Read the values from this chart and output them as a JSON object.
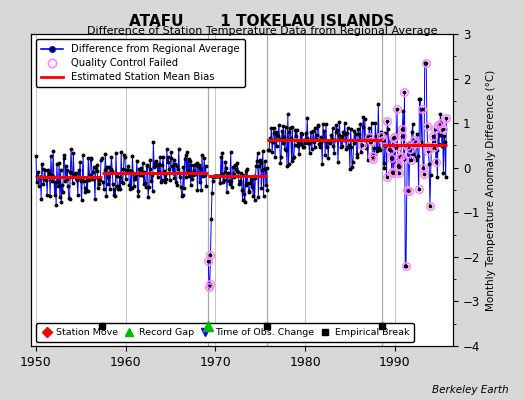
{
  "title": "ATAFU       1 TOKELAU ISLANDS",
  "subtitle": "Difference of Station Temperature Data from Regional Average",
  "ylabel": "Monthly Temperature Anomaly Difference (°C)",
  "xlabel_ticks": [
    1950,
    1960,
    1970,
    1980,
    1990
  ],
  "ylim": [
    -4,
    3
  ],
  "yticks": [
    -4,
    -3,
    -2,
    -1,
    0,
    1,
    2,
    3
  ],
  "xlim": [
    1949.5,
    1996.5
  ],
  "background_color": "#d8d8d8",
  "plot_bg_color": "#ffffff",
  "grid_color": "#bbbbbb",
  "line_color": "#0000ff",
  "dot_color": "#000000",
  "bias_color": "#ff0000",
  "qc_color": "#ff88ff",
  "watermark": "Berkeley Earth",
  "segment_biases": [
    {
      "x_start": 1950.0,
      "x_end": 1957.4,
      "bias": -0.2
    },
    {
      "x_start": 1957.4,
      "x_end": 1969.2,
      "bias": -0.12
    },
    {
      "x_start": 1969.2,
      "x_end": 1975.8,
      "bias": -0.18
    },
    {
      "x_start": 1975.8,
      "x_end": 1988.6,
      "bias": 0.62
    },
    {
      "x_start": 1988.6,
      "x_end": 1995.8,
      "bias": 0.52
    }
  ],
  "event_markers": [
    {
      "type": "empirical_break",
      "year": 1957.4,
      "symbol": "s",
      "color": "#000000",
      "size": 5
    },
    {
      "type": "record_gap",
      "year": 1969.2,
      "symbol": "^",
      "color": "#00bb00",
      "size": 7
    },
    {
      "type": "empirical_break",
      "year": 1975.8,
      "symbol": "s",
      "color": "#000000",
      "size": 5
    },
    {
      "type": "empirical_break",
      "year": 1988.6,
      "symbol": "s",
      "color": "#000000",
      "size": 5
    }
  ],
  "vertical_lines": [
    1969.2,
    1975.8,
    1988.6
  ],
  "vertical_line_color": "#aaaaaa"
}
